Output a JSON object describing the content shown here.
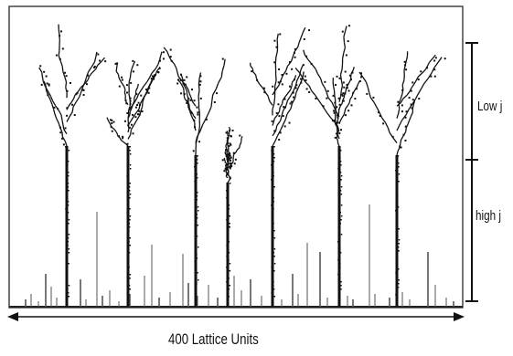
{
  "figure": {
    "scale_labels": {
      "top": "Low j",
      "bottom": "high j"
    },
    "width_label": "400 Lattice Units",
    "colors": {
      "ink": "#111111",
      "frame": "#333333",
      "background": "#ffffff"
    }
  }
}
